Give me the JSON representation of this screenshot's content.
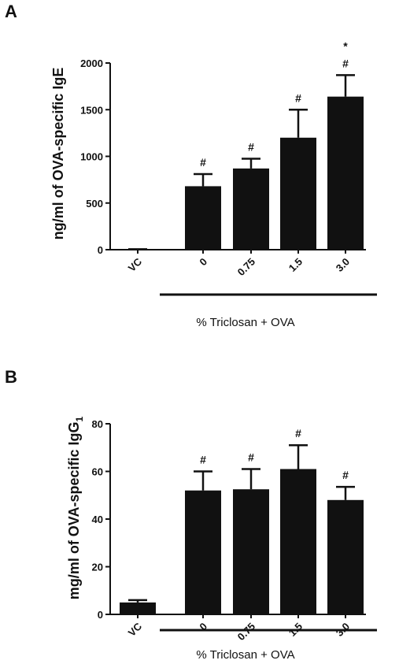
{
  "chart_data": [
    {
      "panel": "A",
      "type": "bar",
      "ylabel": "ng/ml of OVA-specific IgE",
      "categories": [
        "VC",
        "0",
        "0.75",
        "1.5",
        "3.0"
      ],
      "values": [
        5,
        680,
        870,
        1200,
        1640
      ],
      "error_upper": [
        5,
        810,
        975,
        1500,
        1870
      ],
      "significance": [
        [],
        [
          "#"
        ],
        [
          "#"
        ],
        [
          "#"
        ],
        [
          "#",
          "*"
        ]
      ],
      "ylim": [
        0,
        2000
      ],
      "yticks": [
        0,
        500,
        1000,
        1500,
        2000
      ],
      "group_label": "% Triclosan +  OVA",
      "group_span": [
        1,
        4
      ]
    },
    {
      "panel": "B",
      "type": "bar",
      "ylabel": "mg/ml of OVA-specific IgG",
      "ylabel_subscript": "1",
      "categories": [
        "VC",
        "0",
        "0.75",
        "1.5",
        "3.0"
      ],
      "values": [
        5,
        52,
        52.5,
        61,
        48
      ],
      "error_upper": [
        6,
        60,
        61,
        71,
        53.5
      ],
      "significance": [
        [],
        [
          "#"
        ],
        [
          "#"
        ],
        [
          "#"
        ],
        [
          "#"
        ]
      ],
      "ylim": [
        0,
        80
      ],
      "yticks": [
        0,
        20,
        40,
        60,
        80
      ],
      "group_label": "% Triclosan +  OVA",
      "group_span": [
        1,
        4
      ]
    }
  ]
}
